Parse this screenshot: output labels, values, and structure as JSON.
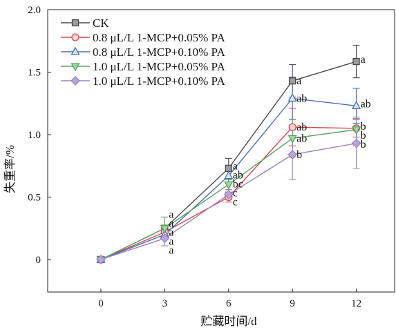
{
  "chart_data": {
    "type": "line",
    "x": [
      0,
      3,
      6,
      9,
      12
    ],
    "xticks": [
      0,
      3,
      6,
      9,
      12
    ],
    "xtick_labels": [
      "0",
      "3",
      "6",
      "9",
      "12"
    ],
    "yticks": [
      0,
      0.5,
      1.0,
      1.5,
      2.0
    ],
    "ytick_labels": [
      "0",
      "0.5",
      "1.0",
      "1.5",
      "2.0"
    ],
    "xlim": [
      -2.5,
      13.8
    ],
    "ylim": [
      -0.26,
      2.0
    ],
    "xlabel": "贮藏时间/d",
    "ylabel": "失重率/%",
    "grid": false,
    "legend_position": "top-left",
    "error_bars": true,
    "series": [
      {
        "name": "CK",
        "color": "#4a4a4a",
        "marker": "square",
        "marker_fill": "#9c9c9c",
        "values": [
          0,
          0.25,
          0.73,
          1.43,
          1.585
        ],
        "errors": [
          0,
          0.02,
          0.08,
          0.13,
          0.13
        ],
        "labels": [
          null,
          "a",
          "a",
          "a",
          "a"
        ]
      },
      {
        "name": "0.8 μL/L 1-MCP+0.05% PA",
        "color": "#d24a4a",
        "marker": "circle",
        "marker_fill": "#f4d2d2",
        "values": [
          0,
          0.22,
          0.5,
          1.06,
          1.05
        ],
        "errors": [
          0,
          0.03,
          0.04,
          0.15,
          0.07
        ],
        "labels": [
          null,
          "a",
          "c",
          "ab",
          "b"
        ]
      },
      {
        "name": "0.8 μL/L 1-MCP+0.10% PA",
        "color": "#4a6fb5",
        "marker": "triangle-up",
        "marker_fill": "#dde6f5",
        "values": [
          0,
          0.2,
          0.67,
          1.29,
          1.23
        ],
        "errors": [
          0,
          0.03,
          0.05,
          0.17,
          0.14
        ],
        "labels": [
          null,
          "a",
          "ab",
          "ab",
          "ab"
        ]
      },
      {
        "name": "1.0 μL/L 1-MCP+0.05% PA",
        "color": "#5aa25e",
        "marker": "triangle-down",
        "marker_fill": "#9fd3a0",
        "values": [
          0,
          0.25,
          0.6,
          0.97,
          1.04
        ],
        "errors": [
          0,
          0.09,
          0.04,
          0.15,
          0.1
        ],
        "labels": [
          null,
          "a",
          "bc",
          "ab",
          "b"
        ]
      },
      {
        "name": "1.0 μL/L 1-MCP+0.10% PA",
        "color": "#9a82c0",
        "marker": "diamond",
        "marker_fill": "#b9a6d8",
        "values": [
          0,
          0.17,
          0.52,
          0.84,
          0.93
        ],
        "errors": [
          0,
          0.06,
          0.04,
          0.2,
          0.2
        ],
        "labels": [
          null,
          "a",
          "c",
          "b",
          "b"
        ]
      }
    ]
  }
}
